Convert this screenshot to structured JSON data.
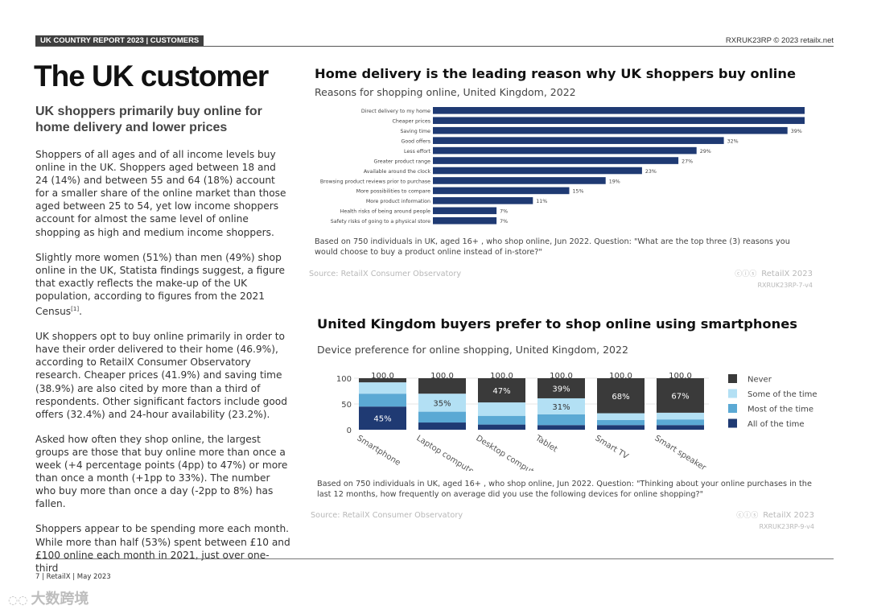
{
  "header": {
    "section": "UK COUNTRY REPORT 2023 | CUSTOMERS",
    "ref": "RXRUK23RP © 2023 retailx.net"
  },
  "page": {
    "title": "The UK customer",
    "subtitle": "UK shoppers primarily buy online for home delivery and lower prices",
    "paragraphs": [
      "Shoppers of all ages and of all income levels buy online in the UK. Shoppers aged between 18 and 24 (14%) and between 55 and 64 (18%) account for a smaller share of the online market than those aged between 25 to 54, yet low income shoppers account for almost the same level of online shopping as high and medium income shoppers.",
      "UK shoppers opt to buy online primarily in order to have their order delivered to their home (46.9%), according to RetailX Consumer Observatory research. Cheaper prices (41.9%) and saving time (38.9%) are also cited by more than a third of respondents. Other significant factors include good offers (32.4%) and 24-hour availability (23.2%).",
      "Asked how often they shop online, the largest groups are those that buy online more than once a week (+4 percentage points (4pp) to 47%) or more than once a month (+1pp to 33%). The number who buy more than once a day (-2pp to 8%) has fallen.",
      "Shoppers appear to be spending more each month. While more than half (53%) spent between £10 and £100 online each month in 2021, just over one-third"
    ],
    "paragraph2": {
      "text": "Slightly more women (51%) than men (49%) shop online in the UK, Statista findings suggest, a figure that exactly reflects the make-up of the UK population, according to figures from the 2021 Census",
      "footnote": "[1]"
    }
  },
  "chart1": {
    "title": "Home delivery is the leading reason why UK shoppers buy online",
    "subtitle": "Reasons for shopping online, United Kingdom, 2022",
    "note": "Based on 750 individuals in UK, aged 16+ , who shop online, Jun 2022. Question: \"What are the top three (3) reasons you would choose to buy a product online instead of in-store?\"",
    "source": "Source: RetailX Consumer Observatory",
    "brand": "RetailX 2023",
    "code": "RXRUK23RP-7-v4"
  },
  "chart2": {
    "title": "United Kingdom buyers prefer to shop online using smartphones",
    "subtitle": "Device preference for online shopping, United Kingdom, 2022",
    "note": "Based on 750 individuals in UK, aged 16+ , who shop online, Jun 2022. Question: \"Thinking about your online purchases in the last 12 months, how frequently on average did you use the following devices for online shopping?\"",
    "source": "Source: RetailX Consumer Observatory",
    "brand": "RetailX 2023",
    "code": "RXRUK23RP-9-v4"
  },
  "footer": {
    "text": "7 | RetailX | May 2023"
  },
  "watermark": {
    "text": "大数跨境"
  },
  "colors": {
    "navy": "#1f3a73",
    "mid_blue": "#5ba9d4",
    "light_blue": "#b3e0f4",
    "dark_gray": "#3a3a3a",
    "brand_icon": "#c4c4c4"
  },
  "chart_data": [
    {
      "type": "bar",
      "orientation": "horizontal",
      "title": "Home delivery is the leading reason why UK shoppers buy online",
      "categories": [
        "Direct delivery to my home",
        "Cheaper prices",
        "Saving time",
        "Good offers",
        "Less effort",
        "Greater product range",
        "Available around the clock",
        "Browsing product reviews prior to purchase",
        "More possibilities to compare",
        "More product information",
        "Health risks of being around people",
        "Safety risks of going to a physical store"
      ],
      "values": [
        47,
        42,
        39,
        32,
        29,
        27,
        23,
        19,
        15,
        11,
        7,
        7
      ],
      "value_suffix": "%",
      "xlim": [
        0,
        50
      ],
      "grid": false
    },
    {
      "type": "bar",
      "stacked": true,
      "title": "United Kingdom buyers prefer to shop online using smartphones",
      "categories": [
        "Smartphone",
        "Laptop computer",
        "Desktop computer",
        "Tablet",
        "Smart TV",
        "Smart speaker"
      ],
      "totals": [
        "100.0",
        "100.0",
        "100.0",
        "100.0",
        "100.0",
        "100.0"
      ],
      "yticks": [
        0,
        50,
        100
      ],
      "ylim": [
        0,
        100
      ],
      "series": [
        {
          "name": "All of the time",
          "color": "#1f3a73",
          "values": [
            45,
            14,
            10,
            9,
            9,
            9
          ],
          "labels": [
            "45%",
            "",
            "",
            "",
            "",
            ""
          ]
        },
        {
          "name": "Most of the time",
          "color": "#5ba9d4",
          "values": [
            25,
            21,
            17,
            21,
            10,
            11
          ],
          "labels": [
            "",
            "",
            "",
            "",
            "",
            ""
          ]
        },
        {
          "name": "Some of the time",
          "color": "#b3e0f4",
          "values": [
            22,
            35,
            26,
            31,
            13,
            13
          ],
          "labels": [
            "",
            "35%",
            "",
            "31%",
            "",
            ""
          ]
        },
        {
          "name": "Never",
          "color": "#3a3a3a",
          "values": [
            8,
            30,
            47,
            39,
            68,
            67
          ],
          "labels": [
            "",
            "",
            "47%",
            "39%",
            "68%",
            "67%"
          ]
        }
      ],
      "legend_order": [
        "Never",
        "Some of the time",
        "Most of the time",
        "All of the time"
      ],
      "legend_position": "right"
    }
  ]
}
